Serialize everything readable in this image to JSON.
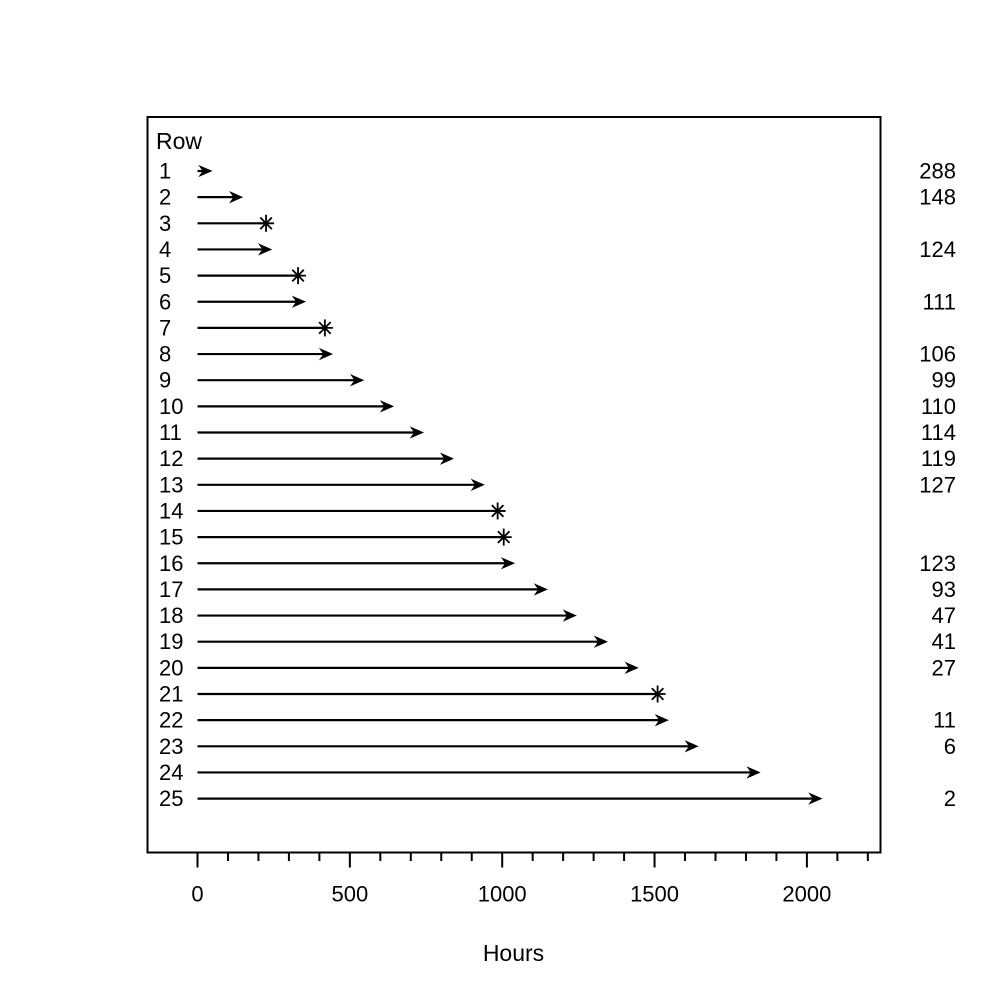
{
  "figure": {
    "background_color": "#ffffff",
    "stroke_color": "#000000",
    "row_header": "Row",
    "xlabel": "Hours"
  },
  "chart_data": {
    "type": "scatter",
    "subtype": "event-chart-horizontal-arrows",
    "title": "",
    "xlabel": "Hours",
    "ylabel": "",
    "row_header": "Row",
    "xlim": [
      -160,
      2240
    ],
    "x_major_ticks": [
      0,
      500,
      1000,
      1500,
      2000
    ],
    "x_major_tick_labels": [
      "0",
      "500",
      "1000",
      "1500",
      "2000"
    ],
    "x_minor_tick_step": 100,
    "x_minor_tick_min": 0,
    "x_minor_tick_max": 2200,
    "grid": false,
    "legend": false,
    "marker_legend": {
      "arrow": "right-arrow end",
      "asterisk": "asterisk (pch 8) end"
    },
    "rows": [
      {
        "row": "1",
        "hours": 45,
        "end": "arrow",
        "right_label": "288"
      },
      {
        "row": "2",
        "hours": 146,
        "end": "arrow",
        "right_label": "148"
      },
      {
        "row": "3",
        "hours": 225,
        "end": "asterisk",
        "right_label": ""
      },
      {
        "row": "4",
        "hours": 241,
        "end": "arrow",
        "right_label": "124"
      },
      {
        "row": "5",
        "hours": 330,
        "end": "asterisk",
        "right_label": ""
      },
      {
        "row": "6",
        "hours": 352,
        "end": "arrow",
        "right_label": "111"
      },
      {
        "row": "7",
        "hours": 418,
        "end": "asterisk",
        "right_label": ""
      },
      {
        "row": "8",
        "hours": 441,
        "end": "arrow",
        "right_label": "106"
      },
      {
        "row": "9",
        "hours": 543,
        "end": "arrow",
        "right_label": "99"
      },
      {
        "row": "10",
        "hours": 641,
        "end": "arrow",
        "right_label": "110"
      },
      {
        "row": "11",
        "hours": 739,
        "end": "arrow",
        "right_label": "114"
      },
      {
        "row": "12",
        "hours": 838,
        "end": "arrow",
        "right_label": "119"
      },
      {
        "row": "13",
        "hours": 939,
        "end": "arrow",
        "right_label": "127"
      },
      {
        "row": "14",
        "hours": 985,
        "end": "asterisk",
        "right_label": ""
      },
      {
        "row": "15",
        "hours": 1005,
        "end": "asterisk",
        "right_label": ""
      },
      {
        "row": "16",
        "hours": 1038,
        "end": "arrow",
        "right_label": "123"
      },
      {
        "row": "17",
        "hours": 1146,
        "end": "arrow",
        "right_label": "93"
      },
      {
        "row": "18",
        "hours": 1241,
        "end": "arrow",
        "right_label": "47"
      },
      {
        "row": "19",
        "hours": 1343,
        "end": "arrow",
        "right_label": "41"
      },
      {
        "row": "20",
        "hours": 1444,
        "end": "arrow",
        "right_label": "27"
      },
      {
        "row": "21",
        "hours": 1510,
        "end": "asterisk",
        "right_label": ""
      },
      {
        "row": "22",
        "hours": 1543,
        "end": "arrow",
        "right_label": "11"
      },
      {
        "row": "23",
        "hours": 1641,
        "end": "arrow",
        "right_label": "6"
      },
      {
        "row": "24",
        "hours": 1844,
        "end": "arrow",
        "right_label": ""
      },
      {
        "row": "25",
        "hours": 2047,
        "end": "arrow",
        "right_label": "2"
      }
    ]
  }
}
